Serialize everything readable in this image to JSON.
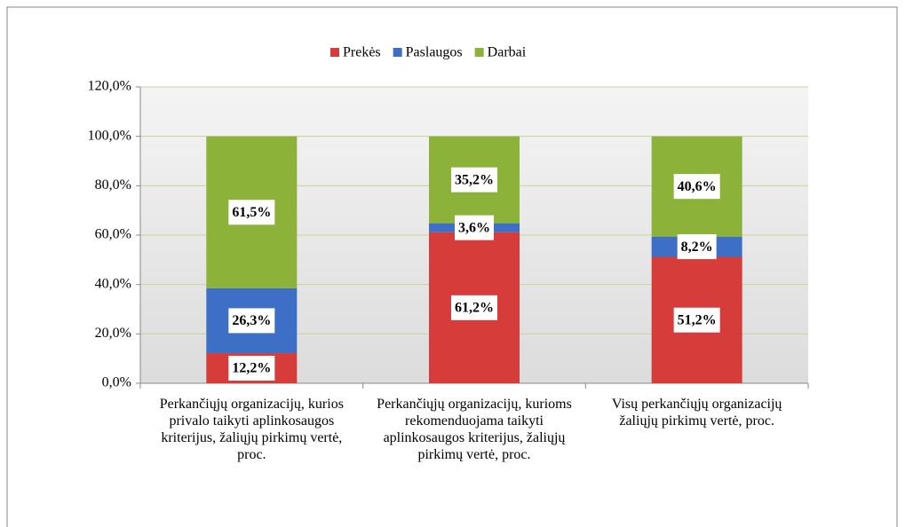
{
  "chart_data": {
    "type": "stacked_bar",
    "categories": [
      "Perkančiųjų organizacijų, kurios privalo taikyti aplinkosaugos kriterijus, žaliųjų pirkimų vertė, proc.",
      "Perkančiųjų organizacijų, kurioms rekomenduojama taikyti aplinkosaugos kriterijus, žaliųjų pirkimų vertė, proc.",
      "Visų perkančiųjų organizacijų žaliųjų pirkimų vertė, proc."
    ],
    "series": [
      {
        "name": "Prekės",
        "color": "#d63c3a",
        "values": [
          12.2,
          61.2,
          51.2
        ],
        "value_labels": [
          "12,2%",
          "61,2%",
          "51,2%"
        ]
      },
      {
        "name": "Paslaugos",
        "color": "#3d6fc6",
        "values": [
          26.3,
          3.6,
          8.2
        ],
        "value_labels": [
          "26,3%",
          "3,6%",
          "8,2%"
        ]
      },
      {
        "name": "Darbai",
        "color": "#8cb23a",
        "values": [
          61.5,
          35.2,
          40.6
        ],
        "value_labels": [
          "61,5%",
          "35,2%",
          "40,6%"
        ]
      }
    ],
    "ylim": [
      0,
      120
    ],
    "yticks": [
      {
        "value": 0,
        "label": "0,0%"
      },
      {
        "value": 20,
        "label": "20,0%"
      },
      {
        "value": 40,
        "label": "40,0%"
      },
      {
        "value": 60,
        "label": "60,0%"
      },
      {
        "value": 80,
        "label": "80,0%"
      },
      {
        "value": 100,
        "label": "100,0%"
      },
      {
        "value": 120,
        "label": "120,0%"
      }
    ],
    "grid": true,
    "legend": "top"
  }
}
